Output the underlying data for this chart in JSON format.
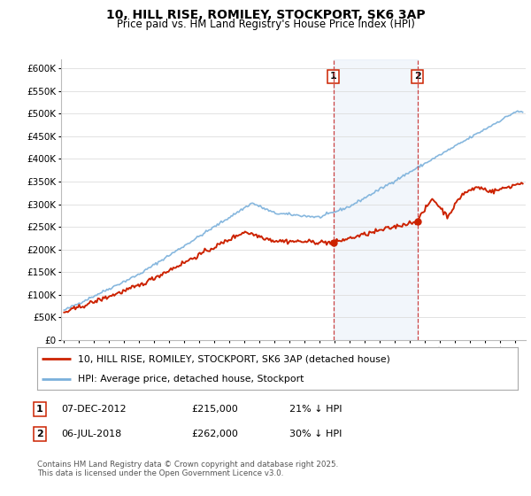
{
  "title": "10, HILL RISE, ROMILEY, STOCKPORT, SK6 3AP",
  "subtitle": "Price paid vs. HM Land Registry's House Price Index (HPI)",
  "ylim": [
    0,
    620000
  ],
  "yticks": [
    0,
    50000,
    100000,
    150000,
    200000,
    250000,
    300000,
    350000,
    400000,
    450000,
    500000,
    550000,
    600000
  ],
  "ytick_labels": [
    "£0",
    "£50K",
    "£100K",
    "£150K",
    "£200K",
    "£250K",
    "£300K",
    "£350K",
    "£400K",
    "£450K",
    "£500K",
    "£550K",
    "£600K"
  ],
  "hpi_color": "#7ab0db",
  "price_color": "#cc2200",
  "marker1_year_float": 2012.917,
  "marker2_year_float": 2018.5,
  "marker1_price": 215000,
  "marker2_price": 262000,
  "legend_property": "10, HILL RISE, ROMILEY, STOCKPORT, SK6 3AP (detached house)",
  "legend_hpi": "HPI: Average price, detached house, Stockport",
  "footer": "Contains HM Land Registry data © Crown copyright and database right 2025.\nThis data is licensed under the Open Government Licence v3.0.",
  "bg_color": "#ffffff"
}
